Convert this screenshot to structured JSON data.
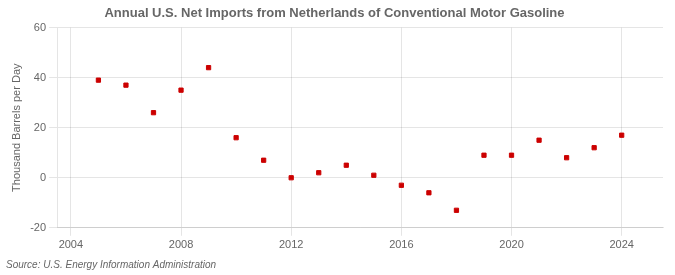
{
  "chart_data": {
    "type": "scatter",
    "title": "Annual U.S. Net Imports from Netherlands of Conventional Motor Gasoline",
    "y_label": "Thousand Barrels per Day",
    "annotation": "Source: U.S. Energy Information Administration",
    "x": [
      2005,
      2006,
      2007,
      2008,
      2009,
      2010,
      2011,
      2012,
      2013,
      2014,
      2015,
      2016,
      2017,
      2018,
      2019,
      2020,
      2021,
      2022,
      2023,
      2024
    ],
    "values": [
      39,
      37,
      26,
      35,
      44,
      16,
      7,
      0,
      2,
      5,
      1,
      -3,
      -6,
      -13,
      9,
      9,
      15,
      8,
      12,
      17
    ],
    "color": "#cc0000",
    "marker": "square",
    "xlim": [
      2003.5,
      2025.5
    ],
    "ylim": [
      -20,
      60
    ],
    "xticks": [
      2004,
      2008,
      2012,
      2016,
      2020,
      2024
    ],
    "yticks": [
      -20,
      0,
      20,
      40,
      60
    ],
    "grid": true
  }
}
